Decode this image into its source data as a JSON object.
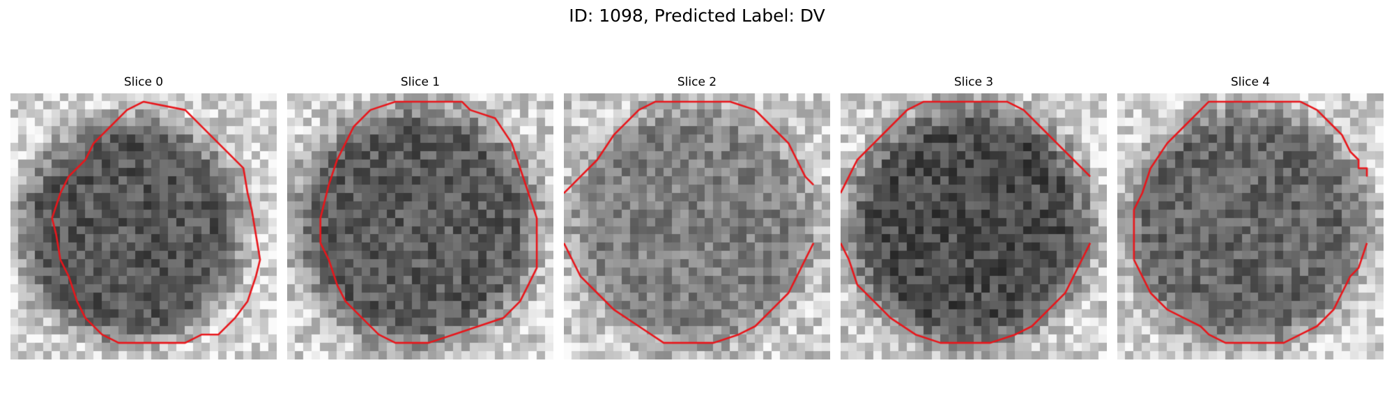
{
  "figure": {
    "title": "ID: 1098, Predicted Label: DV"
  },
  "panels": [
    {
      "title": "Slice 0"
    },
    {
      "title": "Slice 1"
    },
    {
      "title": "Slice 2"
    },
    {
      "title": "Slice 3"
    },
    {
      "title": "Slice 4"
    }
  ],
  "colors": {
    "contour": "#e8161b",
    "background": "#ffffff"
  }
}
